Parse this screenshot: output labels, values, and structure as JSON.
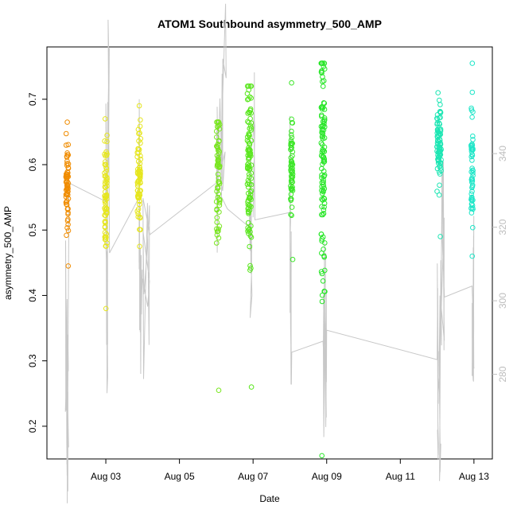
{
  "chart_data": {
    "type": "scatter",
    "title": "ATOM1 Southbound asymmetry_500_AMP",
    "xlabel": "Date",
    "ylabel": "asymmetry_500_AMP",
    "x_ticks": [
      "Aug 03",
      "Aug 05",
      "Aug 07",
      "Aug 09",
      "Aug 11",
      "Aug 13"
    ],
    "x_tick_days": [
      3,
      5,
      7,
      9,
      11,
      13
    ],
    "xlim_days": [
      1.4,
      13.5
    ],
    "y_ticks": [
      0.2,
      0.3,
      0.4,
      0.5,
      0.6,
      0.7
    ],
    "ylim": [
      0.15,
      0.78
    ],
    "y2_ticks": [
      280,
      300,
      320,
      340
    ],
    "y2lim": [
      257,
      369
    ],
    "grid": false,
    "line_color": "#c8c8c8",
    "clusters": [
      {
        "day": 1.95,
        "spread": 0.07,
        "color": "#f08c00",
        "y_min": 0.445,
        "y_max": 0.665,
        "y_center": 0.56,
        "count": 70
      },
      {
        "day": 3.0,
        "spread": 0.07,
        "color": "#e6e61e",
        "y_min": 0.38,
        "y_max": 0.67,
        "y_center": 0.55,
        "count": 65
      },
      {
        "day": 3.9,
        "spread": 0.09,
        "color": "#e6e61e",
        "y_min": 0.475,
        "y_max": 0.69,
        "y_center": 0.58,
        "count": 75
      },
      {
        "day": 6.05,
        "spread": 0.09,
        "color": "#78e61e",
        "y_min": 0.255,
        "y_max": 0.665,
        "y_center": 0.59,
        "count": 70
      },
      {
        "day": 6.9,
        "spread": 0.11,
        "color": "#5ae61e",
        "y_min": 0.26,
        "y_max": 0.72,
        "y_center": 0.6,
        "count": 110
      },
      {
        "day": 8.05,
        "spread": 0.06,
        "color": "#3ce628",
        "y_min": 0.455,
        "y_max": 0.725,
        "y_center": 0.6,
        "count": 60
      },
      {
        "day": 8.9,
        "spread": 0.1,
        "color": "#28e628",
        "y_min": 0.155,
        "y_max": 0.755,
        "y_center": 0.6,
        "count": 110
      },
      {
        "day": 12.05,
        "spread": 0.12,
        "color": "#1ee6b4",
        "y_min": 0.49,
        "y_max": 0.71,
        "y_center": 0.63,
        "count": 85
      },
      {
        "day": 12.95,
        "spread": 0.05,
        "color": "#1ee6c8",
        "y_min": 0.46,
        "y_max": 0.755,
        "y_center": 0.61,
        "count": 55
      }
    ],
    "y2_line_points": [
      [
        1.9,
        290
      ],
      [
        1.93,
        275
      ],
      [
        1.95,
        268
      ],
      [
        2.0,
        332
      ],
      [
        3.0,
        327
      ],
      [
        3.02,
        288
      ],
      [
        3.05,
        354
      ],
      [
        3.1,
        313
      ],
      [
        3.9,
        328
      ],
      [
        3.92,
        292
      ],
      [
        4.0,
        306
      ],
      [
        4.2,
        318
      ],
      [
        6.0,
        332
      ],
      [
        6.1,
        355
      ],
      [
        6.3,
        325
      ],
      [
        6.9,
        320
      ],
      [
        7.0,
        345
      ],
      [
        7.05,
        322
      ],
      [
        8.0,
        324
      ],
      [
        8.02,
        292
      ],
      [
        8.05,
        286
      ],
      [
        8.9,
        289
      ],
      [
        8.95,
        288
      ],
      [
        9.0,
        292
      ],
      [
        12.0,
        284
      ],
      [
        12.05,
        278
      ],
      [
        12.1,
        311
      ],
      [
        12.2,
        301
      ],
      [
        12.95,
        304
      ],
      [
        12.98,
        300
      ],
      [
        13.0,
        282
      ]
    ]
  }
}
